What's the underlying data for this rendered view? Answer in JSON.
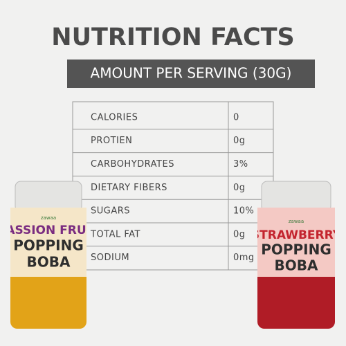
{
  "header": {
    "title": "NUTRITION FACTS",
    "subtitle": "AMOUNT PER SERVING (30G)"
  },
  "table": {
    "rows": [
      [
        "CALORIES",
        "0"
      ],
      [
        "PROTIEN",
        "0g"
      ],
      [
        "CARBOHYDRATES",
        "3%"
      ],
      [
        "DIETARY FIBERS",
        "0g"
      ],
      [
        "SUGARS",
        "10%"
      ],
      [
        "TOTAL FAT",
        "0g"
      ],
      [
        "SODIUM",
        "0mg"
      ]
    ]
  },
  "jars": [
    {
      "brand": "zawaa",
      "flavor": "PASSION FRUIT",
      "product": [
        "POPPING",
        "BOBA"
      ]
    },
    {
      "brand": "zawaa",
      "flavor": "STRAWBERRY",
      "product": [
        "POPPING",
        "BOBA"
      ]
    }
  ]
}
